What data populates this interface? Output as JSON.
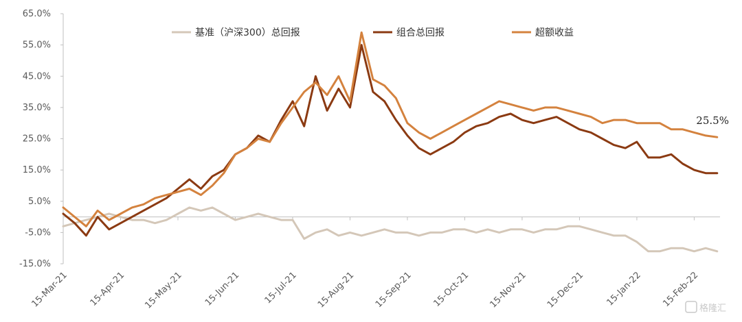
{
  "chart_data": {
    "type": "line",
    "title": "",
    "xlabel": "",
    "ylabel": "",
    "ylim": [
      -15,
      65
    ],
    "y_ticks": [
      "65.0%",
      "55.0%",
      "45.0%",
      "35.0%",
      "25.0%",
      "15.0%",
      "5.0%",
      "-5.0%",
      "-15.0%"
    ],
    "y_tick_values": [
      65,
      55,
      45,
      35,
      25,
      15,
      5,
      -5,
      -15
    ],
    "x_ticks": [
      "15-Mar-21",
      "15-Apr-21",
      "15-May-21",
      "15-Jun-21",
      "15-Jul-21",
      "15-Aug-21",
      "15-Sep-21",
      "15-Oct-21",
      "15-Nov-21",
      "15-Dec-21",
      "15-Jan-22",
      "15-Feb-22"
    ],
    "x_months": [
      0,
      1,
      2,
      3,
      4,
      5,
      6,
      7,
      8,
      9,
      10,
      11
    ],
    "grid": false,
    "legend_position": "top",
    "annotation": {
      "text": "25.5%",
      "x": 11.25,
      "y": 25.5
    },
    "x": [
      0,
      0.2,
      0.4,
      0.6,
      0.8,
      1.0,
      1.2,
      1.4,
      1.6,
      1.8,
      2.0,
      2.2,
      2.4,
      2.6,
      2.8,
      3.0,
      3.2,
      3.4,
      3.6,
      3.8,
      4.0,
      4.2,
      4.4,
      4.6,
      4.8,
      5.0,
      5.2,
      5.4,
      5.6,
      5.8,
      6.0,
      6.2,
      6.4,
      6.6,
      6.8,
      7.0,
      7.2,
      7.4,
      7.6,
      7.8,
      8.0,
      8.2,
      8.4,
      8.6,
      8.8,
      9.0,
      9.2,
      9.4,
      9.6,
      9.8,
      10.0,
      10.2,
      10.4,
      10.6,
      10.8,
      11.0,
      11.2,
      11.4
    ],
    "series": [
      {
        "name": "基准（沪深300）总回报",
        "color": "#d4c7b8",
        "width": 3,
        "values": [
          -3,
          -2,
          -1,
          0,
          1,
          0,
          -1,
          -1,
          -2,
          -1,
          1,
          3,
          2,
          3,
          1,
          -1,
          0,
          1,
          0,
          -1,
          -1,
          -7,
          -5,
          -4,
          -6,
          -5,
          -6,
          -5,
          -4,
          -5,
          -5,
          -6,
          -5,
          -5,
          -4,
          -4,
          -5,
          -4,
          -5,
          -4,
          -4,
          -5,
          -4,
          -4,
          -3,
          -3,
          -4,
          -5,
          -6,
          -6,
          -8,
          -11,
          -11,
          -10,
          -10,
          -11,
          -10,
          -11
        ]
      },
      {
        "name": "组合总回报",
        "color": "#8b3a12",
        "width": 3,
        "values": [
          1,
          -2,
          -6,
          0,
          -4,
          -2,
          0,
          2,
          4,
          6,
          9,
          12,
          9,
          13,
          15,
          20,
          22,
          26,
          24,
          31,
          37,
          29,
          45,
          34,
          41,
          35,
          55,
          40,
          37,
          31,
          26,
          22,
          20,
          22,
          24,
          27,
          29,
          30,
          32,
          33,
          31,
          30,
          31,
          32,
          30,
          28,
          27,
          25,
          23,
          22,
          24,
          19,
          19,
          20,
          17,
          15,
          14,
          14
        ]
      },
      {
        "name": "超额收益",
        "color": "#d4823e",
        "width": 3,
        "values": [
          3,
          0,
          -3,
          2,
          -1,
          1,
          3,
          4,
          6,
          7,
          8,
          9,
          7,
          10,
          14,
          20,
          22,
          25,
          24,
          30,
          35,
          40,
          43,
          39,
          45,
          37,
          59,
          44,
          42,
          38,
          30,
          27,
          25,
          27,
          29,
          31,
          33,
          35,
          37,
          36,
          35,
          34,
          35,
          35,
          34,
          33,
          32,
          30,
          31,
          31,
          30,
          30,
          30,
          28,
          28,
          27,
          26,
          25.5
        ]
      }
    ]
  },
  "watermark": "格隆汇"
}
